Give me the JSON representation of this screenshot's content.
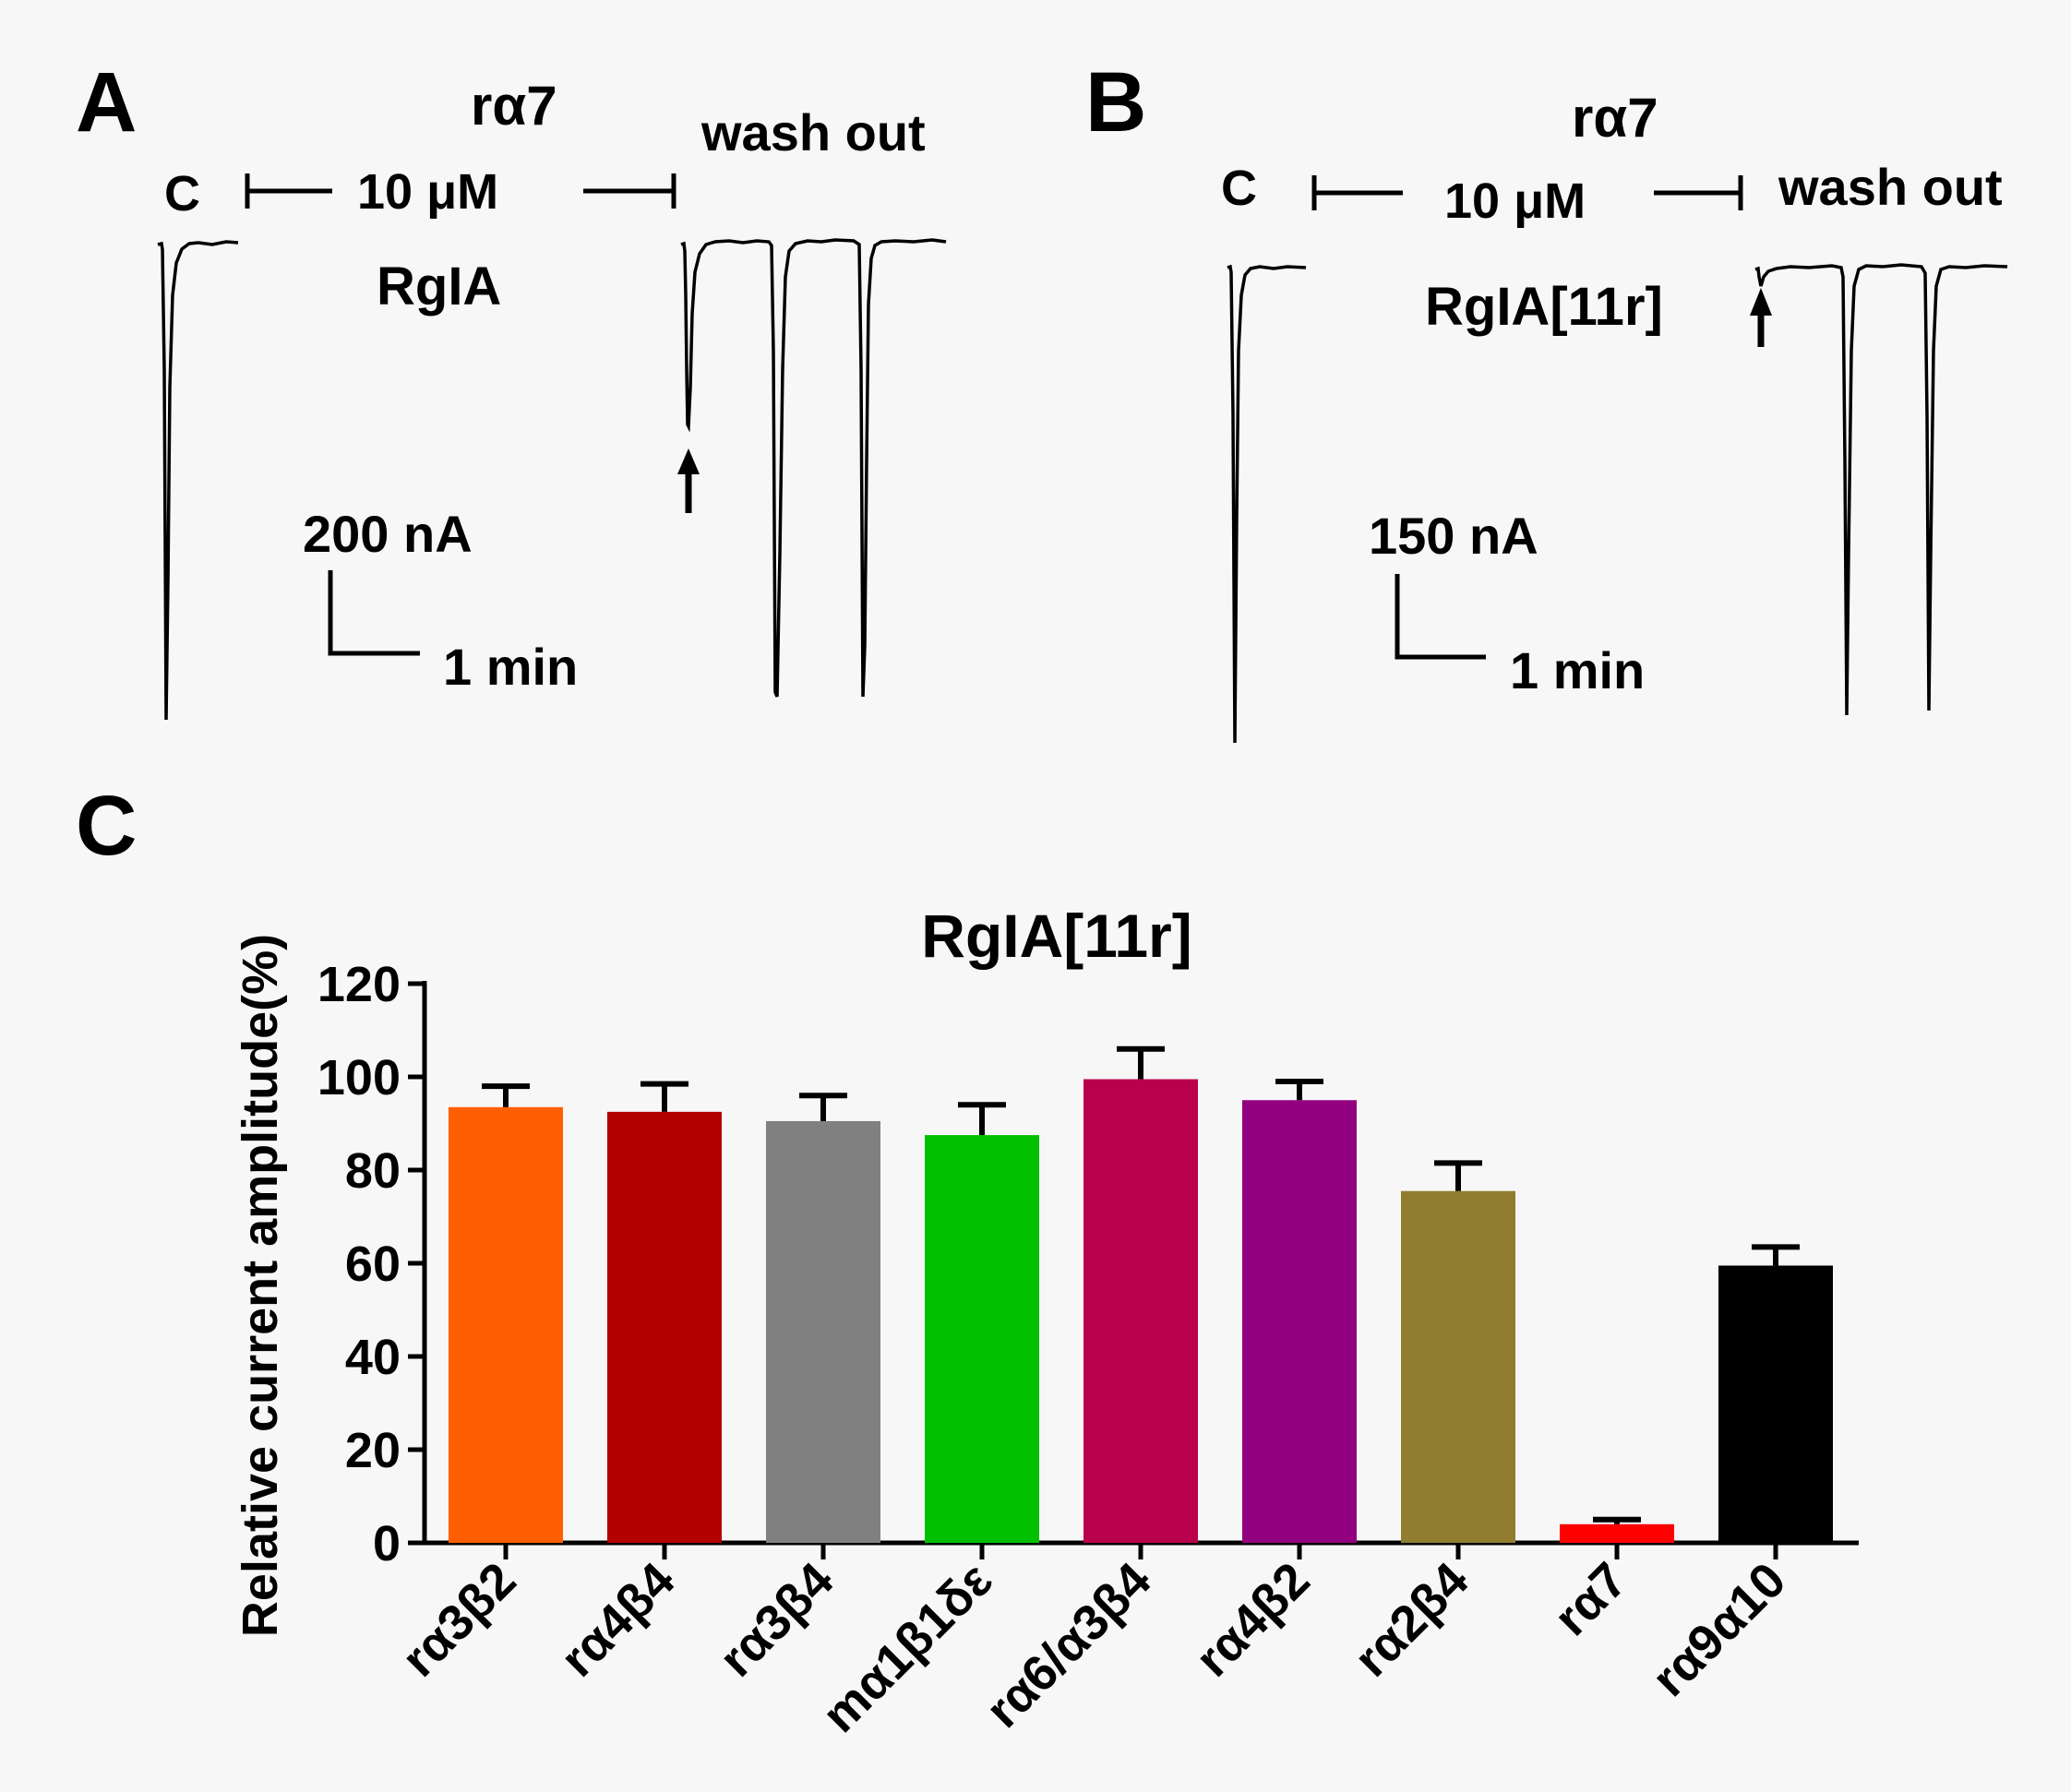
{
  "panels": {
    "a": {
      "letter": "A",
      "receptor": "rα7",
      "control_label": "C",
      "concentration": "10 μM",
      "wash_label": "wash out",
      "peptide": "RgIA",
      "scale_current": "200 nA",
      "scale_time": "1 min"
    },
    "b": {
      "letter": "B",
      "receptor": "rα7",
      "control_label": "C",
      "concentration": "10 μM",
      "wash_label": "wash out",
      "peptide": "RgIA[11r]",
      "scale_current": "150 nA",
      "scale_time": "1 min"
    },
    "c": {
      "letter": "C"
    }
  },
  "chart_data": {
    "type": "bar",
    "title": "RgIA[11r]",
    "ylabel": "Relative current amplitude(%)",
    "xlabel": "",
    "ylim": [
      0,
      120
    ],
    "yticks": [
      0,
      20,
      40,
      60,
      80,
      100,
      120
    ],
    "categories": [
      "rα3β2",
      "rα4β4",
      "rα3β4",
      "mα1β1δε",
      "rα6/α3β4",
      "rα4β2",
      "rα2β4",
      "rα7",
      "rα9α10"
    ],
    "values": [
      93.5,
      92.5,
      90.5,
      87.5,
      99.5,
      95,
      75.5,
      4,
      59.5
    ],
    "errors": [
      4.5,
      6,
      5.5,
      6.5,
      6.5,
      4,
      6,
      1,
      4
    ],
    "colors": [
      "#ff5f00",
      "#b30000",
      "#808080",
      "#00c000",
      "#b8004c",
      "#920080",
      "#917d30",
      "#ff0000",
      "#000000"
    ]
  }
}
